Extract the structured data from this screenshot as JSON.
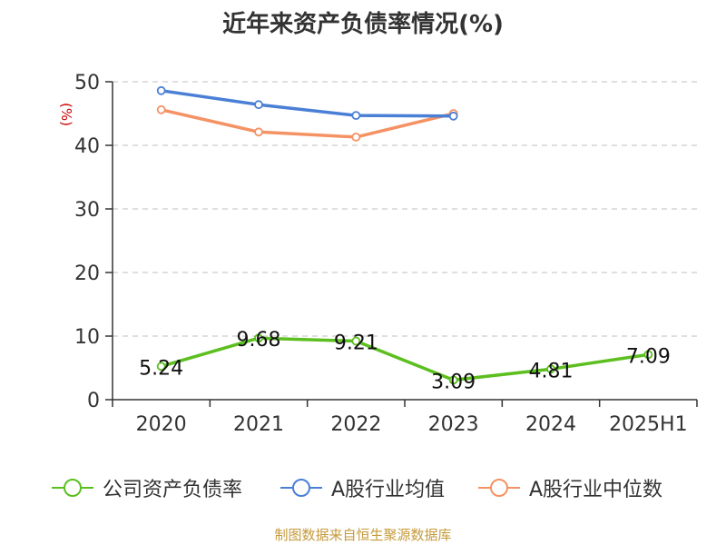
{
  "chart_data": {
    "type": "line",
    "title": "近年来资产负债率情况(%)",
    "ylabel": "(%)",
    "xlabel": "",
    "categories": [
      "2020",
      "2021",
      "2022",
      "2023",
      "2024",
      "2025H1"
    ],
    "ylim": [
      0,
      50
    ],
    "yticks": [
      0,
      10,
      20,
      30,
      40,
      50
    ],
    "grid": true,
    "legend_position": "bottom",
    "series": [
      {
        "name": "公司资产负债率",
        "color": "#5cbf1f",
        "values": [
          5.24,
          9.68,
          9.21,
          3.09,
          4.81,
          7.09
        ],
        "data_labels": [
          "5.24",
          "9.68",
          "9.21",
          "3.09",
          "4.81",
          "7.09"
        ]
      },
      {
        "name": "A股行业均值",
        "color": "#4a7fd6",
        "values": [
          48.6,
          46.4,
          44.7,
          44.6,
          null,
          null
        ]
      },
      {
        "name": "A股行业中位数",
        "color": "#f59264",
        "values": [
          45.6,
          42.1,
          41.3,
          45.0,
          null,
          null
        ]
      }
    ]
  },
  "source": "制图数据来自恒生聚源数据库"
}
